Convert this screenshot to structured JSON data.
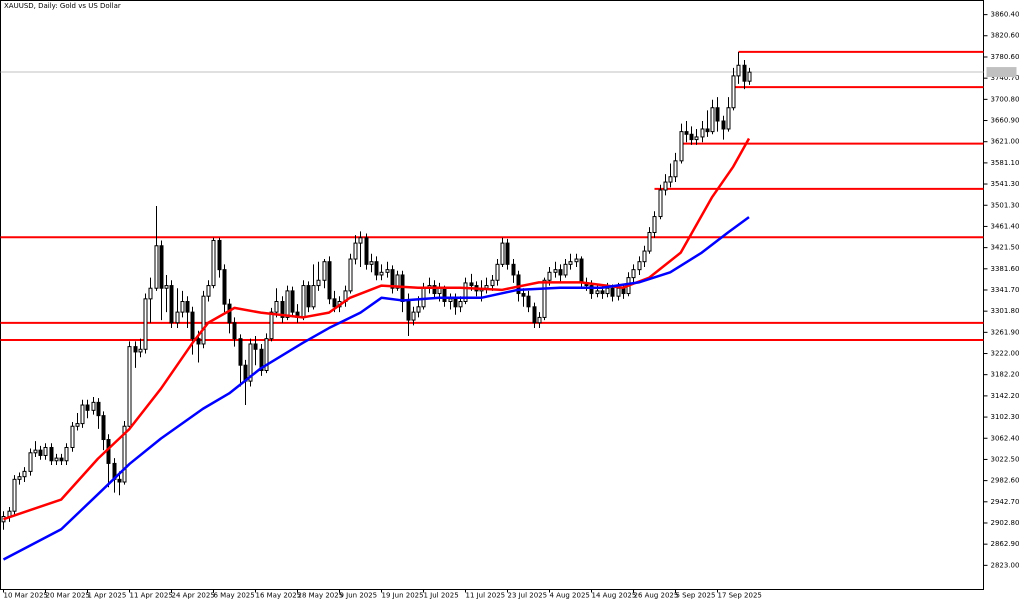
{
  "chart_data": {
    "type": "candlestick",
    "title": "XAUUSD, Daily: Gold vs US Dollar",
    "up_color": "#ffffff",
    "down_color": "#000000",
    "outline_color": "#000000",
    "ylim": [
      2777.5,
      3887
    ],
    "xlim": [
      -0.57,
      186.67
    ],
    "yticks": [
      {
        "value": 3860.4,
        "label": "3860.40"
      },
      {
        "value": 3820.6,
        "label": "3820.60"
      },
      {
        "value": 3780.6,
        "label": "3780.60"
      },
      {
        "value": 3740.7,
        "label": "3740.70"
      },
      {
        "value": 3700.8,
        "label": "3700.80"
      },
      {
        "value": 3660.9,
        "label": "3660.90"
      },
      {
        "value": 3621,
        "label": "3621.00"
      },
      {
        "value": 3581.1,
        "label": "3581.10"
      },
      {
        "value": 3541.3,
        "label": "3541.30"
      },
      {
        "value": 3501.3,
        "label": "3501.30"
      },
      {
        "value": 3461.4,
        "label": "3461.40"
      },
      {
        "value": 3421.5,
        "label": "3421.50"
      },
      {
        "value": 3381.6,
        "label": "3381.60"
      },
      {
        "value": 3341.7,
        "label": "3341.70"
      },
      {
        "value": 3301.8,
        "label": "3301.80"
      },
      {
        "value": 3261.9,
        "label": "3261.90"
      },
      {
        "value": 3222,
        "label": "3222.00"
      },
      {
        "value": 3182.2,
        "label": "3182.20"
      },
      {
        "value": 3142.2,
        "label": "3142.20"
      },
      {
        "value": 3102.3,
        "label": "3102.30"
      },
      {
        "value": 3062.4,
        "label": "3062.40"
      },
      {
        "value": 3022.5,
        "label": "3022.50"
      },
      {
        "value": 2982.6,
        "label": "2982.60"
      },
      {
        "value": 2942.7,
        "label": "2942.70"
      },
      {
        "value": 2902.8,
        "label": "2902.80"
      },
      {
        "value": 2862.9,
        "label": "2862.90"
      },
      {
        "value": 2823,
        "label": "2823.00"
      }
    ],
    "xticks": [
      {
        "value": 0,
        "label": "10 Mar 2025"
      },
      {
        "value": 8,
        "label": "20 Mar 2025"
      },
      {
        "value": 16,
        "label": "1 Apr 2025"
      },
      {
        "value": 24,
        "label": "11 Apr 2025"
      },
      {
        "value": 32,
        "label": "24 Apr 2025"
      },
      {
        "value": 40,
        "label": "6 May 2025"
      },
      {
        "value": 48,
        "label": "16 May 2025"
      },
      {
        "value": 56,
        "label": "28 May 2025"
      },
      {
        "value": 64,
        "label": "9 Jun 2025"
      },
      {
        "value": 72,
        "label": "19 Jun 2025"
      },
      {
        "value": 80,
        "label": "1 Jul 2025"
      },
      {
        "value": 88,
        "label": "11 Jul 2025"
      },
      {
        "value": 96,
        "label": "23 Jul 2025"
      },
      {
        "value": 104,
        "label": "4 Aug 2025"
      },
      {
        "value": 112,
        "label": "14 Aug 2025"
      },
      {
        "value": 120,
        "label": "26 Aug 2025"
      },
      {
        "value": 128,
        "label": "5 Sep 2025"
      },
      {
        "value": 136,
        "label": "17 Sep 2025"
      }
    ],
    "ohlc": [
      [
        2905,
        2925,
        2890,
        2915
      ],
      [
        2915,
        2933,
        2905,
        2925
      ],
      [
        2925,
        2993,
        2917,
        2985
      ],
      [
        2985,
        2998,
        2975,
        2990
      ],
      [
        2990,
        3008,
        2980,
        3000
      ],
      [
        3000,
        3043,
        2992,
        3035
      ],
      [
        3035,
        3057,
        3027,
        3040
      ],
      [
        3040,
        3048,
        3022,
        3030
      ],
      [
        3030,
        3053,
        3022,
        3045
      ],
      [
        3045,
        3053,
        3012,
        3020
      ],
      [
        3020,
        3033,
        3012,
        3025
      ],
      [
        3025,
        3033,
        3012,
        3020
      ],
      [
        3020,
        3053,
        3012,
        3045
      ],
      [
        3045,
        3093,
        3037,
        3085
      ],
      [
        3085,
        3110,
        3077,
        3090
      ],
      [
        3090,
        3135,
        3082,
        3125
      ],
      [
        3125,
        3135,
        3100,
        3115
      ],
      [
        3115,
        3140,
        3107,
        3130
      ],
      [
        3130,
        3138,
        3080,
        3105
      ],
      [
        3105,
        3113,
        3040,
        3060
      ],
      [
        3060,
        3070,
        2970,
        3015
      ],
      [
        3015,
        3025,
        2960,
        2985
      ],
      [
        2985,
        3000,
        2955,
        2980
      ],
      [
        2980,
        3095,
        2975,
        3085
      ],
      [
        3085,
        3245,
        3080,
        3235
      ],
      [
        3235,
        3245,
        3195,
        3225
      ],
      [
        3225,
        3250,
        3215,
        3230
      ],
      [
        3230,
        3335,
        3222,
        3325
      ],
      [
        3325,
        3365,
        3280,
        3345
      ],
      [
        3345,
        3500,
        3340,
        3425
      ],
      [
        3425,
        3435,
        3285,
        3345
      ],
      [
        3345,
        3370,
        3300,
        3350
      ],
      [
        3350,
        3360,
        3270,
        3280
      ],
      [
        3280,
        3345,
        3270,
        3300
      ],
      [
        3300,
        3340,
        3290,
        3320
      ],
      [
        3320,
        3330,
        3270,
        3300
      ],
      [
        3300,
        3310,
        3220,
        3250
      ],
      [
        3250,
        3265,
        3205,
        3240
      ],
      [
        3240,
        3340,
        3232,
        3330
      ],
      [
        3330,
        3360,
        3320,
        3350
      ],
      [
        3350,
        3440,
        3345,
        3435
      ],
      [
        3435,
        3440,
        3365,
        3380
      ],
      [
        3380,
        3390,
        3300,
        3315
      ],
      [
        3315,
        3325,
        3260,
        3280
      ],
      [
        3280,
        3290,
        3235,
        3250
      ],
      [
        3250,
        3258,
        3160,
        3200
      ],
      [
        3200,
        3210,
        3125,
        3170
      ],
      [
        3170,
        3250,
        3160,
        3240
      ],
      [
        3240,
        3255,
        3200,
        3230
      ],
      [
        3230,
        3240,
        3180,
        3190
      ],
      [
        3190,
        3260,
        3185,
        3250
      ],
      [
        3250,
        3308,
        3245,
        3300
      ],
      [
        3300,
        3345,
        3290,
        3320
      ],
      [
        3320,
        3330,
        3280,
        3290
      ],
      [
        3290,
        3350,
        3285,
        3340
      ],
      [
        3340,
        3348,
        3290,
        3300
      ],
      [
        3300,
        3315,
        3280,
        3290
      ],
      [
        3290,
        3360,
        3285,
        3350
      ],
      [
        3350,
        3358,
        3300,
        3310
      ],
      [
        3310,
        3390,
        3305,
        3350
      ],
      [
        3350,
        3395,
        3340,
        3360
      ],
      [
        3360,
        3400,
        3345,
        3395
      ],
      [
        3395,
        3405,
        3315,
        3325
      ],
      [
        3325,
        3340,
        3300,
        3310
      ],
      [
        3310,
        3330,
        3300,
        3320
      ],
      [
        3320,
        3350,
        3310,
        3340
      ],
      [
        3340,
        3410,
        3335,
        3400
      ],
      [
        3400,
        3445,
        3390,
        3430
      ],
      [
        3430,
        3452,
        3385,
        3440
      ],
      [
        3440,
        3448,
        3380,
        3390
      ],
      [
        3390,
        3410,
        3375,
        3395
      ],
      [
        3395,
        3405,
        3360,
        3370
      ],
      [
        3370,
        3390,
        3360,
        3375
      ],
      [
        3375,
        3395,
        3365,
        3380
      ],
      [
        3380,
        3388,
        3335,
        3345
      ],
      [
        3345,
        3378,
        3340,
        3370
      ],
      [
        3370,
        3378,
        3300,
        3320
      ],
      [
        3320,
        3335,
        3255,
        3285
      ],
      [
        3285,
        3310,
        3275,
        3300
      ],
      [
        3300,
        3330,
        3290,
        3310
      ],
      [
        3310,
        3355,
        3305,
        3345
      ],
      [
        3345,
        3365,
        3335,
        3350
      ],
      [
        3350,
        3360,
        3325,
        3335
      ],
      [
        3335,
        3355,
        3320,
        3345
      ],
      [
        3345,
        3350,
        3310,
        3320
      ],
      [
        3320,
        3335,
        3305,
        3325
      ],
      [
        3325,
        3335,
        3295,
        3310
      ],
      [
        3310,
        3330,
        3300,
        3320
      ],
      [
        3320,
        3365,
        3315,
        3355
      ],
      [
        3355,
        3372,
        3340,
        3350
      ],
      [
        3350,
        3358,
        3330,
        3340
      ],
      [
        3340,
        3360,
        3320,
        3345
      ],
      [
        3345,
        3365,
        3335,
        3350
      ],
      [
        3350,
        3370,
        3340,
        3360
      ],
      [
        3360,
        3400,
        3350,
        3390
      ],
      [
        3390,
        3440,
        3385,
        3430
      ],
      [
        3430,
        3438,
        3380,
        3390
      ],
      [
        3390,
        3400,
        3355,
        3370
      ],
      [
        3370,
        3378,
        3320,
        3335
      ],
      [
        3335,
        3345,
        3310,
        3330
      ],
      [
        3330,
        3340,
        3300,
        3310
      ],
      [
        3310,
        3318,
        3270,
        3280
      ],
      [
        3280,
        3300,
        3270,
        3290
      ],
      [
        3290,
        3365,
        3285,
        3360
      ],
      [
        3360,
        3385,
        3350,
        3375
      ],
      [
        3375,
        3395,
        3365,
        3380
      ],
      [
        3380,
        3390,
        3355,
        3370
      ],
      [
        3370,
        3400,
        3365,
        3390
      ],
      [
        3390,
        3410,
        3380,
        3395
      ],
      [
        3395,
        3410,
        3385,
        3400
      ],
      [
        3400,
        3405,
        3345,
        3355
      ],
      [
        3355,
        3365,
        3340,
        3350
      ],
      [
        3350,
        3360,
        3325,
        3335
      ],
      [
        3335,
        3352,
        3328,
        3340
      ],
      [
        3340,
        3350,
        3325,
        3335
      ],
      [
        3335,
        3355,
        3328,
        3345
      ],
      [
        3345,
        3352,
        3320,
        3330
      ],
      [
        3330,
        3355,
        3322,
        3345
      ],
      [
        3345,
        3352,
        3325,
        3335
      ],
      [
        3335,
        3375,
        3330,
        3365
      ],
      [
        3365,
        3390,
        3355,
        3380
      ],
      [
        3380,
        3405,
        3370,
        3395
      ],
      [
        3395,
        3425,
        3385,
        3415
      ],
      [
        3415,
        3460,
        3410,
        3450
      ],
      [
        3450,
        3490,
        3440,
        3480
      ],
      [
        3480,
        3540,
        3475,
        3530
      ],
      [
        3530,
        3560,
        3520,
        3545
      ],
      [
        3545,
        3580,
        3535,
        3555
      ],
      [
        3555,
        3600,
        3545,
        3585
      ],
      [
        3585,
        3655,
        3580,
        3640
      ],
      [
        3640,
        3660,
        3620,
        3635
      ],
      [
        3635,
        3650,
        3615,
        3625
      ],
      [
        3625,
        3645,
        3615,
        3630
      ],
      [
        3630,
        3660,
        3620,
        3645
      ],
      [
        3645,
        3680,
        3630,
        3640
      ],
      [
        3640,
        3700,
        3635,
        3685
      ],
      [
        3685,
        3705,
        3640,
        3660
      ],
      [
        3660,
        3670,
        3625,
        3645
      ],
      [
        3645,
        3705,
        3640,
        3685
      ],
      [
        3685,
        3760,
        3680,
        3745
      ],
      [
        3745,
        3790,
        3730,
        3765
      ],
      [
        3765,
        3775,
        3720,
        3735
      ],
      [
        3735,
        3760,
        3728,
        3752
      ]
    ],
    "series": [
      {
        "color": "#ff0000",
        "x": [
          0,
          11,
          18,
          24,
          30,
          36,
          39,
          44,
          49,
          57,
          62,
          66,
          72,
          79,
          87,
          95,
          102,
          110,
          118,
          123,
          129,
          135,
          139,
          142
        ],
        "values": [
          2910,
          2947,
          3024,
          3080,
          3156,
          3242,
          3280,
          3308,
          3299,
          3290,
          3299,
          3327,
          3350,
          3346,
          3346,
          3342,
          3356,
          3356,
          3346,
          3365,
          3412,
          3517,
          3574,
          3627
        ]
      },
      {
        "color": "#0000ff",
        "x": [
          0,
          11,
          18,
          24,
          30,
          38,
          43,
          49,
          57,
          62,
          68,
          72,
          76,
          83,
          91,
          98,
          106,
          114,
          121,
          127,
          133,
          138,
          142
        ],
        "values": [
          2834,
          2891,
          2957,
          3014,
          3062,
          3118,
          3147,
          3194,
          3242,
          3270,
          3299,
          3327,
          3322,
          3327,
          3327,
          3342,
          3346,
          3346,
          3356,
          3375,
          3412,
          3450,
          3479
        ]
      }
    ],
    "level_color": "#ff0000",
    "levels": [
      {
        "value": 3790.2,
        "start_x": 140
      },
      {
        "value": 3723.8,
        "start_x": 139
      },
      {
        "value": 3617.5,
        "start_x": 129
      },
      {
        "value": 3532.1,
        "start_x": 124
      },
      {
        "value": 3441
      },
      {
        "value": 3279.8
      },
      {
        "value": 3247.5
      }
    ],
    "price_line": 3752.2,
    "price_line_color": "#c0c0c0"
  }
}
